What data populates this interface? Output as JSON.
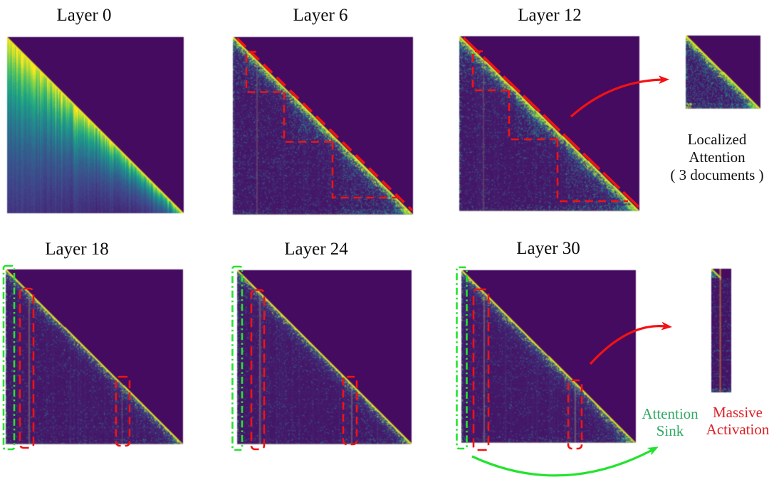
{
  "figure": {
    "background_color": "#ffffff",
    "panels": [
      {
        "id": "layer-0",
        "title": "Layer 0"
      },
      {
        "id": "layer-6",
        "title": "Layer 6"
      },
      {
        "id": "layer-12",
        "title": "Layer 12"
      },
      {
        "id": "layer-18",
        "title": "Layer 18"
      },
      {
        "id": "layer-24",
        "title": "Layer 24"
      },
      {
        "id": "layer-30",
        "title": "Layer 30"
      }
    ],
    "insets": {
      "localized_attention": {
        "caption_lines": [
          "Localized",
          "Attention",
          "( 3 documents )"
        ]
      }
    },
    "labels": {
      "attention_sink": {
        "lines": [
          "Attention",
          "Sink"
        ],
        "color": "#31a865"
      },
      "massive_activation": {
        "lines": [
          "Massive",
          "Activation"
        ],
        "color": "#dc2126"
      }
    },
    "colors": {
      "annotation_red": "#f31212",
      "annotation_green": "#23e32e",
      "heatmap_dark_purple": "#440154",
      "heatmap_diagonal_yellow": "#fde725",
      "title_text": "#0b0b0b"
    }
  }
}
